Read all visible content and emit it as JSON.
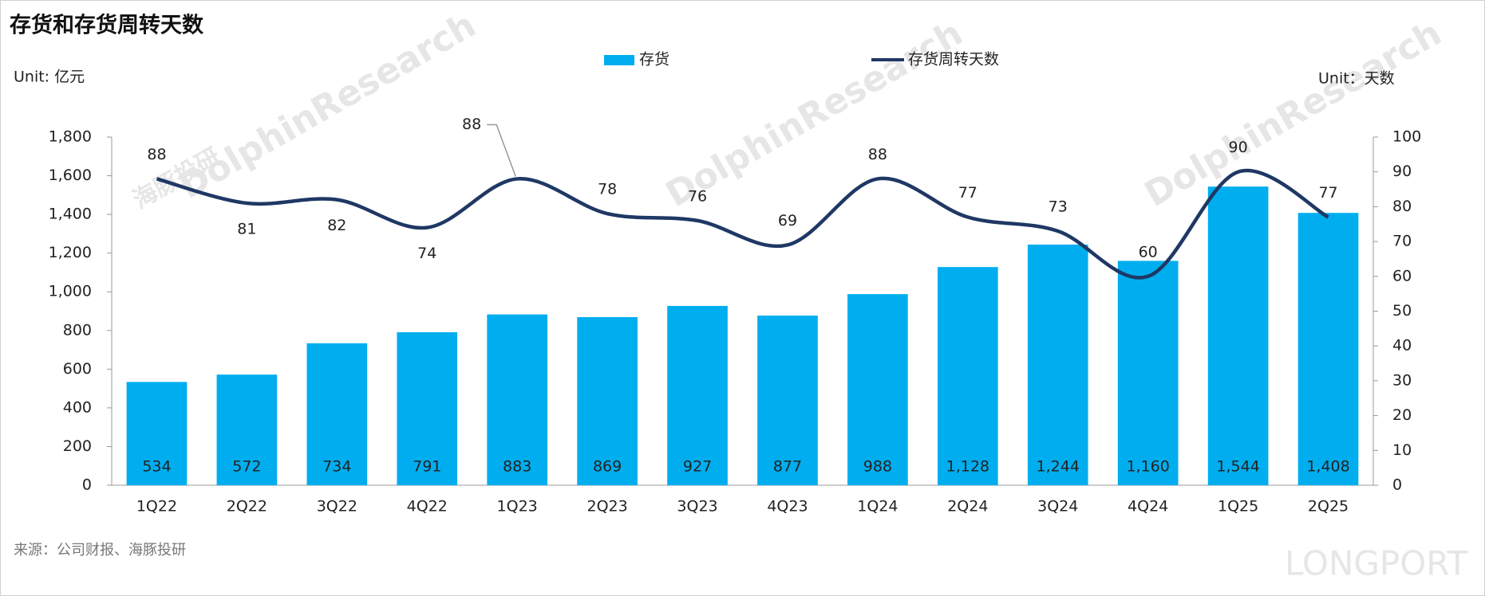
{
  "chart_data": {
    "type": "bar",
    "title": "存货和存货周转天数",
    "y_label": "Unit: 亿元",
    "y2_label": "Unit：天数",
    "source": "来源：公司财报、海豚投研",
    "watermarks": [
      "DolphinResearch",
      "海豚投研",
      "LONGPORT"
    ],
    "categories": [
      "1Q22",
      "2Q22",
      "3Q22",
      "4Q22",
      "1Q23",
      "2Q23",
      "3Q23",
      "4Q23",
      "1Q24",
      "2Q24",
      "3Q24",
      "4Q24",
      "1Q25",
      "2Q25"
    ],
    "series": [
      {
        "name": "存货",
        "type": "bar",
        "color": "#00aeef",
        "values": [
          534,
          572,
          734,
          791,
          883,
          869,
          927,
          877,
          988,
          1128,
          1244,
          1160,
          1544,
          1408
        ],
        "value_labels": [
          "534",
          "572",
          "734",
          "791",
          "883",
          "869",
          "927",
          "877",
          "988",
          "1,128",
          "1,244",
          "1,160",
          "1,544",
          "1,408"
        ]
      },
      {
        "name": "存货周转天数",
        "type": "line",
        "axis": "y2",
        "color": "#1f3864",
        "values": [
          88,
          81,
          82,
          74,
          88,
          78,
          76,
          69,
          88,
          77,
          73,
          60,
          90,
          77
        ]
      }
    ],
    "ylim": [
      0,
      1800
    ],
    "yticks": [
      0,
      200,
      400,
      600,
      800,
      {
        "value": 1000,
        "label": "1,000"
      },
      {
        "value": 1200,
        "label": "1,200"
      },
      {
        "value": 1400,
        "label": "1,400"
      },
      {
        "value": 1600,
        "label": "1,600"
      },
      {
        "value": 1800,
        "label": "1,800"
      }
    ],
    "y2lim": [
      0,
      100
    ],
    "y2ticks": [
      0,
      10,
      20,
      30,
      40,
      50,
      60,
      70,
      80,
      90,
      100
    ],
    "legend": "top"
  }
}
